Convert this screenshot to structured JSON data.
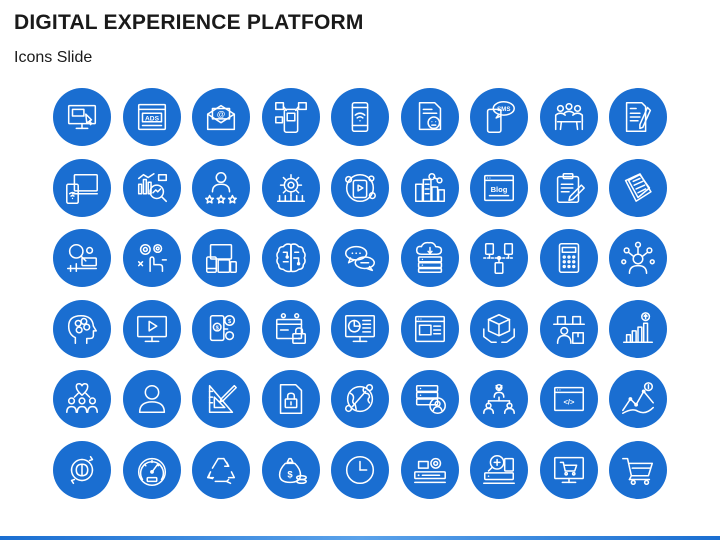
{
  "slide": {
    "title": "DIGITAL EXPERIENCE PLATFORM",
    "subtitle": "Icons Slide"
  },
  "colors": {
    "circle": "#1a6ed1",
    "icon_stroke": "#ffffff",
    "title": "#1a1a1a"
  },
  "icons": [
    {
      "name": "monitor-ad-icon"
    },
    {
      "name": "ads-window-icon",
      "text": "ADS"
    },
    {
      "name": "email-envelope-icon",
      "text": "@"
    },
    {
      "name": "social-phone-icon"
    },
    {
      "name": "mobile-wifi-icon"
    },
    {
      "name": "document-feedback-icon"
    },
    {
      "name": "sms-phone-icon",
      "text": "SMS"
    },
    {
      "name": "team-meeting-icon"
    },
    {
      "name": "document-pen-icon"
    },
    {
      "name": "devices-wifi-icon"
    },
    {
      "name": "analytics-magnifier-icon"
    },
    {
      "name": "user-rating-icon"
    },
    {
      "name": "network-gear-icon"
    },
    {
      "name": "digital-media-cycle-icon"
    },
    {
      "name": "city-network-icon"
    },
    {
      "name": "blog-window-icon",
      "text": "Blog"
    },
    {
      "name": "clipboard-edit-icon"
    },
    {
      "name": "documents-stack-icon"
    },
    {
      "name": "search-process-icon"
    },
    {
      "name": "gear-touch-icon"
    },
    {
      "name": "multi-device-icon"
    },
    {
      "name": "brain-circuit-icon"
    },
    {
      "name": "chat-bubbles-icon"
    },
    {
      "name": "cloud-server-icon"
    },
    {
      "name": "device-network-icon"
    },
    {
      "name": "mobile-keypad-icon"
    },
    {
      "name": "user-network-icon"
    },
    {
      "name": "head-brain-icon"
    },
    {
      "name": "video-monitor-icon"
    },
    {
      "name": "mobile-payment-icon"
    },
    {
      "name": "secure-payment-icon"
    },
    {
      "name": "dashboard-monitor-icon"
    },
    {
      "name": "browser-layout-icon"
    },
    {
      "name": "hands-box-icon"
    },
    {
      "name": "warehouse-worker-icon"
    },
    {
      "name": "growth-chart-icon"
    },
    {
      "name": "team-heart-icon"
    },
    {
      "name": "user-profile-icon"
    },
    {
      "name": "design-tools-icon"
    },
    {
      "name": "secure-document-icon"
    },
    {
      "name": "global-network-icon"
    },
    {
      "name": "user-database-icon"
    },
    {
      "name": "organization-chart-icon"
    },
    {
      "name": "code-window-icon",
      "text": "</>"
    },
    {
      "name": "analytics-graph-icon"
    },
    {
      "name": "eco-cycle-icon"
    },
    {
      "name": "speedometer-icon"
    },
    {
      "name": "recycle-icon"
    },
    {
      "name": "money-coins-icon"
    },
    {
      "name": "clock-icon"
    },
    {
      "name": "server-gear-icon"
    },
    {
      "name": "search-devices-icon"
    },
    {
      "name": "online-shopping-icon"
    },
    {
      "name": "shopping-cart-icon"
    }
  ]
}
